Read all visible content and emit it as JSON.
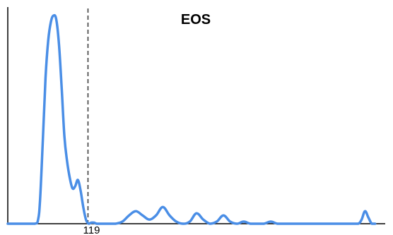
{
  "chart_data": {
    "type": "line",
    "title": "EOS",
    "xlabel": "",
    "ylabel": "",
    "xlim": [
      0,
      560
    ],
    "ylim": [
      0,
      100
    ],
    "grid": false,
    "legend": "none",
    "x_ticks": [
      {
        "value": 119,
        "label": "119"
      }
    ],
    "reference_lines": [
      {
        "orientation": "vertical",
        "x": 119,
        "style": "dashed",
        "color": "#333333"
      }
    ],
    "series": [
      {
        "color": "#4a8ee6",
        "x": [
          0,
          20,
          40,
          45,
          48,
          52,
          56,
          60,
          64,
          68,
          72,
          76,
          80,
          84,
          88,
          92,
          96,
          100,
          104,
          108,
          112,
          116,
          120,
          124,
          128,
          132,
          136,
          140,
          144,
          148,
          152,
          156,
          160,
          170,
          180,
          190,
          200,
          210,
          220,
          230,
          240,
          250,
          260,
          270,
          280,
          290,
          300,
          310,
          320,
          330,
          340,
          350,
          360,
          370,
          380,
          390,
          400,
          410,
          420,
          430,
          440,
          450,
          460,
          470,
          480,
          490,
          500,
          510,
          520,
          525,
          530,
          535,
          540,
          545
        ],
        "values": [
          0,
          0,
          0,
          2,
          12,
          40,
          70,
          88,
          97,
          100,
          98,
          86,
          65,
          42,
          30,
          22,
          17,
          18,
          21,
          16,
          8,
          2,
          0,
          0.5,
          0.5,
          0,
          0,
          0,
          0,
          0,
          0,
          0,
          0,
          1,
          4,
          6,
          4,
          2,
          4,
          8,
          4,
          1,
          0,
          1,
          5,
          2,
          0,
          1,
          4,
          1,
          0,
          1,
          0,
          0,
          0,
          1,
          0,
          0,
          0,
          0,
          0,
          0,
          0,
          0,
          0,
          0,
          0,
          0,
          0,
          2,
          6,
          3,
          0,
          0
        ]
      }
    ]
  }
}
